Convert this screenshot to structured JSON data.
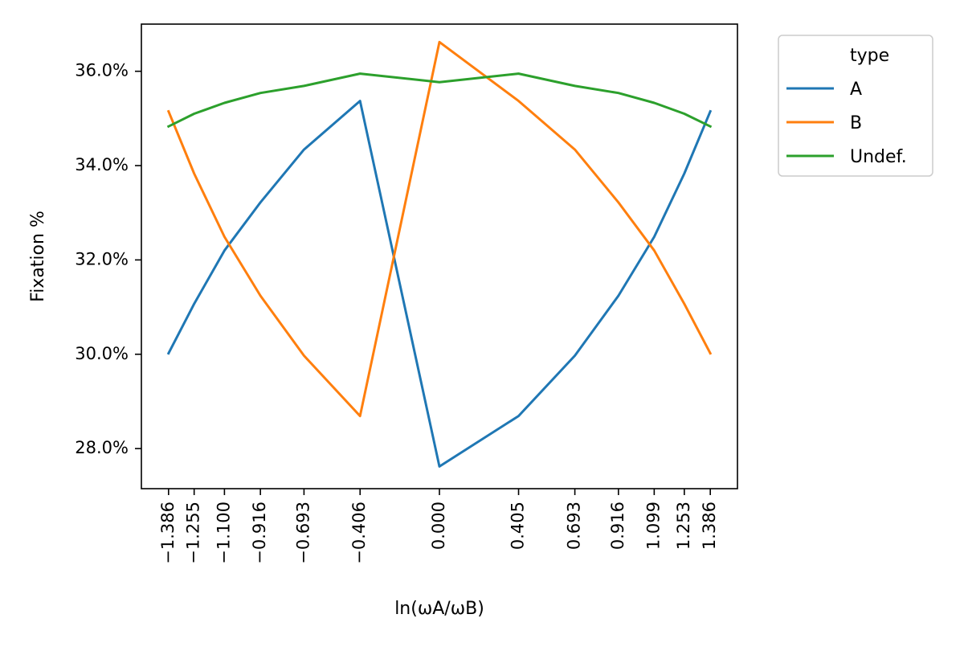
{
  "chart_data": {
    "type": "line",
    "title": "",
    "xlabel": "ln(ωA/ωB)",
    "ylabel": "Fixation %",
    "x": [
      -1.386,
      -1.255,
      -1.1,
      -0.916,
      -0.693,
      -0.406,
      0.0,
      0.405,
      0.693,
      0.916,
      1.099,
      1.253,
      1.386
    ],
    "x_tick_labels": [
      "−1.386",
      "−1.255",
      "−1.100",
      "−0.916",
      "−0.693",
      "−0.406",
      "0.000",
      "0.405",
      "0.693",
      "0.916",
      "1.099",
      "1.253",
      "1.386"
    ],
    "xlim": [
      -1.525,
      1.525
    ],
    "ylim": [
      27.15,
      37.0
    ],
    "y_ticks": [
      28.0,
      30.0,
      32.0,
      34.0,
      36.0
    ],
    "y_tick_labels": [
      "28.0%",
      "30.0%",
      "32.0%",
      "34.0%",
      "36.0%"
    ],
    "grid": false,
    "legend": {
      "title": "type",
      "position": "outside-top-right"
    },
    "series": [
      {
        "name": "A",
        "color": "#1f77b4",
        "values": [
          30.02,
          31.07,
          32.2,
          33.22,
          34.34,
          35.37,
          27.62,
          28.69,
          29.97,
          31.24,
          32.49,
          33.83,
          35.15
        ]
      },
      {
        "name": "B",
        "color": "#ff7f0e",
        "values": [
          35.15,
          33.83,
          32.49,
          31.24,
          29.97,
          28.69,
          36.62,
          35.37,
          34.34,
          33.22,
          32.2,
          31.07,
          30.02
        ]
      },
      {
        "name": "Undef.",
        "color": "#2ca02c",
        "values": [
          34.83,
          35.1,
          35.33,
          35.54,
          35.69,
          35.95,
          35.77,
          35.95,
          35.69,
          35.54,
          35.33,
          35.1,
          34.83
        ]
      }
    ]
  }
}
